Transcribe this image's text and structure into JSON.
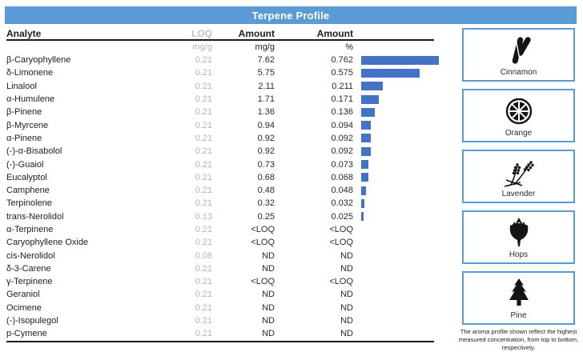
{
  "title": "Terpene Profile",
  "colors": {
    "header_blue": "#5B9BD5",
    "bar_blue": "#4472C4",
    "box_border_blue": "#5B9BD5",
    "muted_gray": "#b4b4b6"
  },
  "table": {
    "headers": [
      "Analyte",
      "LOQ",
      "Amount",
      "Amount"
    ],
    "units": [
      "",
      "mg/g",
      "mg/g",
      "%"
    ],
    "bar_max": 0.762,
    "rows": [
      {
        "analyte": "β-Caryophyllene",
        "loq": "0.21",
        "amount_mgg": "7.62",
        "amount_pct": "0.762",
        "bar": 0.762
      },
      {
        "analyte": "δ-Limonene",
        "loq": "0.21",
        "amount_mgg": "5.75",
        "amount_pct": "0.575",
        "bar": 0.575
      },
      {
        "analyte": "Linalool",
        "loq": "0.21",
        "amount_mgg": "2.11",
        "amount_pct": "0.211",
        "bar": 0.211
      },
      {
        "analyte": "α-Humulene",
        "loq": "0.21",
        "amount_mgg": "1.71",
        "amount_pct": "0.171",
        "bar": 0.171
      },
      {
        "analyte": "β-Pinene",
        "loq": "0.21",
        "amount_mgg": "1.36",
        "amount_pct": "0.136",
        "bar": 0.136
      },
      {
        "analyte": "β-Myrcene",
        "loq": "0.21",
        "amount_mgg": "0.94",
        "amount_pct": "0.094",
        "bar": 0.094
      },
      {
        "analyte": "α-Pinene",
        "loq": "0.21",
        "amount_mgg": "0.92",
        "amount_pct": "0.092",
        "bar": 0.092
      },
      {
        "analyte": "(-)-α-Bisabolol",
        "loq": "0.21",
        "amount_mgg": "0.92",
        "amount_pct": "0.092",
        "bar": 0.092
      },
      {
        "analyte": "(-)-Guaiol",
        "loq": "0.21",
        "amount_mgg": "0.73",
        "amount_pct": "0.073",
        "bar": 0.073
      },
      {
        "analyte": "Eucalyptol",
        "loq": "0.21",
        "amount_mgg": "0.68",
        "amount_pct": "0.068",
        "bar": 0.068
      },
      {
        "analyte": "Camphene",
        "loq": "0.21",
        "amount_mgg": "0.48",
        "amount_pct": "0.048",
        "bar": 0.048
      },
      {
        "analyte": "Terpinolene",
        "loq": "0.21",
        "amount_mgg": "0.32",
        "amount_pct": "0.032",
        "bar": 0.032
      },
      {
        "analyte": "trans-Nerolidol",
        "loq": "0.13",
        "amount_mgg": "0.25",
        "amount_pct": "0.025",
        "bar": 0.025
      },
      {
        "analyte": "α-Terpinene",
        "loq": "0.21",
        "amount_mgg": "<LOQ",
        "amount_pct": "<LOQ",
        "bar": null
      },
      {
        "analyte": "Caryophyllene Oxide",
        "loq": "0.21",
        "amount_mgg": "<LOQ",
        "amount_pct": "<LOQ",
        "bar": null
      },
      {
        "analyte": "cis-Nerolidol",
        "loq": "0.08",
        "amount_mgg": "ND",
        "amount_pct": "ND",
        "bar": null
      },
      {
        "analyte": "δ-3-Carene",
        "loq": "0.21",
        "amount_mgg": "ND",
        "amount_pct": "ND",
        "bar": null
      },
      {
        "analyte": "γ-Terpinene",
        "loq": "0.21",
        "amount_mgg": "<LOQ",
        "amount_pct": "<LOQ",
        "bar": null
      },
      {
        "analyte": "Geraniol",
        "loq": "0.21",
        "amount_mgg": "ND",
        "amount_pct": "ND",
        "bar": null
      },
      {
        "analyte": "Ocimene",
        "loq": "0.21",
        "amount_mgg": "ND",
        "amount_pct": "ND",
        "bar": null
      },
      {
        "analyte": "(-)-Isopulegol",
        "loq": "0.21",
        "amount_mgg": "ND",
        "amount_pct": "ND",
        "bar": null
      },
      {
        "analyte": "p-Cymene",
        "loq": "0.21",
        "amount_mgg": "ND",
        "amount_pct": "ND",
        "bar": null
      }
    ]
  },
  "aromas": {
    "items": [
      {
        "label": "Cinnamon"
      },
      {
        "label": "Orange"
      },
      {
        "label": "Lavender"
      },
      {
        "label": "Hops"
      },
      {
        "label": "Pine"
      }
    ],
    "footnote": "The aroma profile shown reflect the highest measured concentration, from top to bottom, respectively."
  }
}
